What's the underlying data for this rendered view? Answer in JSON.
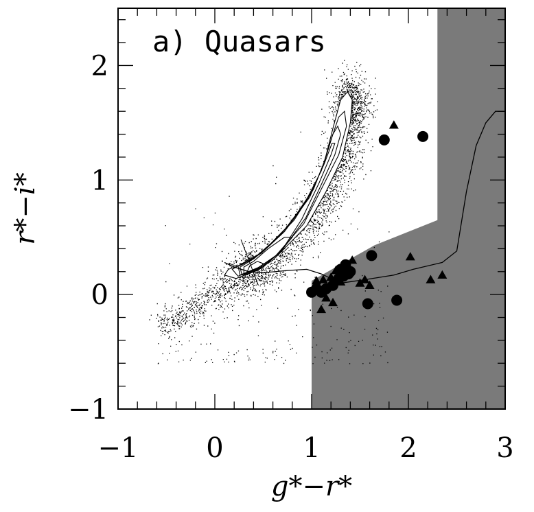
{
  "chart_data": {
    "type": "scatter",
    "title": "",
    "panel_label": "a) Quasars",
    "xlabel": "g*−r*",
    "ylabel": "r*−i*",
    "xlim": [
      -1,
      3
    ],
    "ylim": [
      -1,
      2.5
    ],
    "x_ticks": [
      -1,
      0,
      1,
      2,
      3
    ],
    "y_ticks": [
      -1,
      0,
      1,
      2
    ],
    "x_tick_labels": [
      "−1",
      "0",
      "1",
      "2",
      "3"
    ],
    "y_tick_labels": [
      "−1",
      "0",
      "1",
      "2"
    ],
    "grid": false,
    "legend": "none",
    "selection_region": {
      "color": "#7a7a7a",
      "vertices": [
        [
          1.0,
          -1.0
        ],
        [
          3.0,
          -1.0
        ],
        [
          3.0,
          2.5
        ],
        [
          2.3,
          2.5
        ],
        [
          2.3,
          0.65
        ],
        [
          1.65,
          0.43
        ],
        [
          1.0,
          0.12
        ]
      ]
    },
    "stellar_locus": {
      "contours": [
        [
          [
            0.22,
            0.14
          ],
          [
            0.4,
            0.2
          ],
          [
            0.6,
            0.3
          ],
          [
            0.95,
            0.6
          ],
          [
            1.15,
            0.9
          ],
          [
            1.32,
            1.2
          ],
          [
            1.4,
            1.5
          ],
          [
            1.42,
            1.7
          ],
          [
            1.37,
            1.77
          ],
          [
            1.3,
            1.7
          ],
          [
            1.22,
            1.45
          ],
          [
            1.13,
            1.15
          ],
          [
            0.98,
            0.85
          ],
          [
            0.72,
            0.55
          ],
          [
            0.48,
            0.36
          ],
          [
            0.28,
            0.26
          ],
          [
            0.14,
            0.22
          ],
          [
            0.1,
            0.17
          ],
          [
            0.22,
            0.14
          ]
        ],
        [
          [
            0.24,
            0.16
          ],
          [
            0.42,
            0.22
          ],
          [
            0.62,
            0.33
          ],
          [
            0.92,
            0.62
          ],
          [
            1.1,
            0.92
          ],
          [
            1.28,
            1.22
          ],
          [
            1.36,
            1.47
          ],
          [
            1.34,
            1.6
          ],
          [
            1.28,
            1.55
          ],
          [
            1.2,
            1.35
          ],
          [
            1.1,
            1.08
          ],
          [
            0.93,
            0.8
          ],
          [
            0.68,
            0.52
          ],
          [
            0.45,
            0.35
          ],
          [
            0.28,
            0.27
          ],
          [
            0.18,
            0.22
          ],
          [
            0.24,
            0.16
          ]
        ],
        [
          [
            0.26,
            0.17
          ],
          [
            0.46,
            0.24
          ],
          [
            0.68,
            0.37
          ],
          [
            0.94,
            0.67
          ],
          [
            1.1,
            0.96
          ],
          [
            1.24,
            1.22
          ],
          [
            1.3,
            1.4
          ],
          [
            1.27,
            1.47
          ],
          [
            1.22,
            1.4
          ],
          [
            1.14,
            1.18
          ],
          [
            1.02,
            0.92
          ],
          [
            0.82,
            0.65
          ],
          [
            0.58,
            0.44
          ],
          [
            0.4,
            0.31
          ],
          [
            0.24,
            0.25
          ],
          [
            0.26,
            0.17
          ]
        ],
        [
          [
            0.28,
            0.17
          ],
          [
            0.48,
            0.24
          ],
          [
            0.68,
            0.37
          ],
          [
            0.9,
            0.66
          ],
          [
            1.08,
            0.98
          ],
          [
            1.2,
            1.22
          ],
          [
            1.24,
            1.32
          ],
          [
            1.21,
            1.32
          ],
          [
            1.13,
            1.14
          ],
          [
            1.0,
            0.9
          ],
          [
            0.78,
            0.62
          ],
          [
            0.56,
            0.43
          ],
          [
            0.38,
            0.3
          ],
          [
            0.26,
            0.24
          ],
          [
            0.28,
            0.17
          ]
        ],
        [
          [
            0.3,
            0.17
          ],
          [
            0.5,
            0.24
          ],
          [
            0.66,
            0.36
          ],
          [
            0.8,
            0.5
          ],
          [
            0.72,
            0.5
          ],
          [
            0.55,
            0.4
          ],
          [
            0.4,
            0.29
          ],
          [
            0.3,
            0.24
          ],
          [
            0.3,
            0.17
          ]
        ],
        [
          [
            0.32,
            0.17
          ],
          [
            0.46,
            0.22
          ],
          [
            0.5,
            0.27
          ],
          [
            0.44,
            0.29
          ],
          [
            0.36,
            0.25
          ],
          [
            0.32,
            0.17
          ]
        ]
      ]
    },
    "quasar_track": [
      [
        0.1,
        0.28
      ],
      [
        0.2,
        0.24
      ],
      [
        0.35,
        0.2
      ],
      [
        0.5,
        0.19
      ],
      [
        0.75,
        0.21
      ],
      [
        0.95,
        0.22
      ],
      [
        1.1,
        0.18
      ],
      [
        1.3,
        0.1
      ],
      [
        1.55,
        0.13
      ],
      [
        1.85,
        0.17
      ],
      [
        2.05,
        0.22
      ],
      [
        2.35,
        0.28
      ],
      [
        2.5,
        0.38
      ],
      [
        2.6,
        0.9
      ],
      [
        2.7,
        1.3
      ],
      [
        2.8,
        1.5
      ],
      [
        2.9,
        1.6
      ],
      [
        3.0,
        1.6
      ]
    ],
    "series": [
      {
        "marker": "circle",
        "x": [
          1.75,
          2.15,
          1.62,
          1.35,
          1.4,
          1.3,
          1.28,
          1.22,
          1.15,
          1.1,
          1.05,
          1.0,
          1.33,
          1.38,
          1.58,
          1.88
        ],
        "y": [
          1.35,
          1.38,
          0.34,
          0.26,
          0.2,
          0.22,
          0.14,
          0.08,
          0.05,
          0.02,
          0.05,
          0.02,
          0.16,
          0.18,
          -0.08,
          -0.05
        ]
      },
      {
        "marker": "triangle",
        "x": [
          1.85,
          1.42,
          2.02,
          1.25,
          1.55,
          1.2,
          1.12,
          1.05,
          1.18,
          1.3,
          1.5,
          1.6,
          1.35,
          2.23,
          2.35,
          1.15,
          1.22,
          1.1
        ],
        "y": [
          1.48,
          0.3,
          0.33,
          0.21,
          0.13,
          0.15,
          0.13,
          0.12,
          0.07,
          0.11,
          0.1,
          0.08,
          0.26,
          0.13,
          0.17,
          -0.03,
          -0.07,
          -0.13
        ]
      }
    ]
  }
}
